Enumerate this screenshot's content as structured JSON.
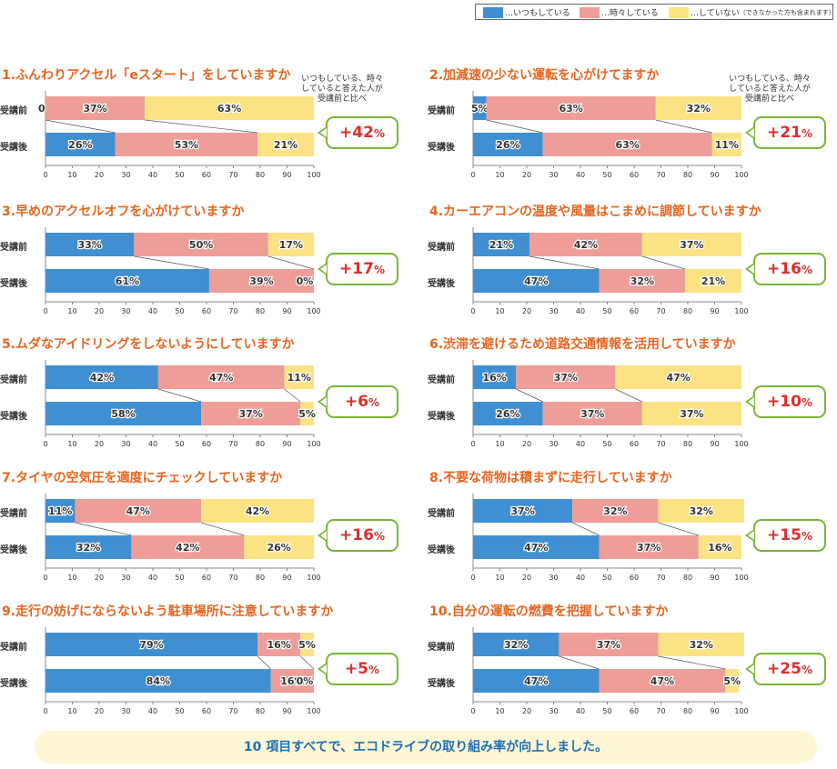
{
  "legend": {
    "always": "…いつもしている",
    "sometimes": "…時々している",
    "never": "…していない",
    "never_note": "（できなかった方も含まれます）"
  },
  "colors": {
    "always": "#3f8fd2",
    "sometimes": "#ef9d98",
    "never": "#fbe383",
    "accent": "#e8651e",
    "badge_border": "#7ab536",
    "badge_text": "#e02d2d",
    "summary_text": "#1f70b5"
  },
  "row_labels": {
    "before": "受講前",
    "after": "受講後"
  },
  "note_text": "いつもしている、時々していると答えた人が受講前と比べ",
  "summary": "10 項目すべてで、エコドライブの取り組み率が向上しました。",
  "chart_data": [
    {
      "type": "bar",
      "title": "1.ふんわりアクセル「eスタート」をしていますか",
      "series": [
        "always",
        "sometimes",
        "never"
      ],
      "before": [
        0,
        37,
        63
      ],
      "after": [
        26,
        53,
        21
      ],
      "improvement": "+42",
      "xlim": [
        0,
        100
      ],
      "ticks": [
        "0",
        "10",
        "20",
        "30",
        "40",
        "50",
        "60",
        "70",
        "80",
        "90",
        "100"
      ]
    },
    {
      "type": "bar",
      "title": "2.加減速の少ない運転を心がけてますか",
      "series": [
        "always",
        "sometimes",
        "never"
      ],
      "before": [
        5,
        63,
        32
      ],
      "after": [
        26,
        63,
        11
      ],
      "improvement": "+21",
      "xlim": [
        0,
        100
      ],
      "ticks": [
        "0",
        "10",
        "20",
        "30",
        "40",
        "50",
        "60",
        "70",
        "80",
        "90",
        "100"
      ]
    },
    {
      "type": "bar",
      "title": "3.早めのアクセルオフを心がけていますか",
      "series": [
        "always",
        "sometimes",
        "never"
      ],
      "before": [
        33,
        50,
        17
      ],
      "after": [
        61,
        39,
        0
      ],
      "improvement": "+17",
      "xlim": [
        0,
        100
      ],
      "ticks": [
        "0",
        "10",
        "20",
        "30",
        "40",
        "50",
        "60",
        "70",
        "80",
        "90",
        "100"
      ]
    },
    {
      "type": "bar",
      "title": "4.カーエアコンの温度や風量はこまめに調節していますか",
      "series": [
        "always",
        "sometimes",
        "never"
      ],
      "before": [
        21,
        42,
        37
      ],
      "after": [
        47,
        32,
        21
      ],
      "improvement": "+16",
      "xlim": [
        0,
        100
      ],
      "ticks": [
        "0",
        "10",
        "20",
        "30",
        "40",
        "50",
        "60",
        "70",
        "80",
        "90",
        "100"
      ]
    },
    {
      "type": "bar",
      "title": "5.ムダなアイドリングをしないようにしていますか",
      "series": [
        "always",
        "sometimes",
        "never"
      ],
      "before": [
        42,
        47,
        11
      ],
      "after": [
        58,
        37,
        5
      ],
      "improvement": "+6",
      "xlim": [
        0,
        100
      ],
      "ticks": [
        "0",
        "10",
        "20",
        "30",
        "40",
        "50",
        "60",
        "70",
        "80",
        "90",
        "100"
      ]
    },
    {
      "type": "bar",
      "title": "6.渋滞を避けるため道路交通情報を活用していますか",
      "series": [
        "always",
        "sometimes",
        "never"
      ],
      "before": [
        16,
        37,
        47
      ],
      "after": [
        26,
        37,
        37
      ],
      "improvement": "+10",
      "xlim": [
        0,
        100
      ],
      "ticks": [
        "0",
        "10",
        "20",
        "30",
        "40",
        "50",
        "60",
        "70",
        "80",
        "90",
        "100"
      ]
    },
    {
      "type": "bar",
      "title": "7.タイヤの空気圧を適度にチェックしていますか",
      "series": [
        "always",
        "sometimes",
        "never"
      ],
      "before": [
        11,
        47,
        42
      ],
      "after": [
        32,
        42,
        26
      ],
      "improvement": "+16",
      "xlim": [
        0,
        100
      ],
      "ticks": [
        "0",
        "10",
        "20",
        "30",
        "40",
        "50",
        "60",
        "70",
        "80",
        "90",
        "100"
      ]
    },
    {
      "type": "bar",
      "title": "8.不要な荷物は積まずに走行していますか",
      "series": [
        "always",
        "sometimes",
        "never"
      ],
      "before": [
        37,
        32,
        32
      ],
      "after": [
        47,
        37,
        16
      ],
      "improvement": "+15",
      "xlim": [
        0,
        100
      ],
      "ticks": [
        "0",
        "10",
        "20",
        "30",
        "40",
        "50",
        "60",
        "70",
        "80",
        "90",
        "100"
      ]
    },
    {
      "type": "bar",
      "title": "9.走行の妨げにならないよう駐車場所に注意していますか",
      "series": [
        "always",
        "sometimes",
        "never"
      ],
      "before": [
        79,
        16,
        5
      ],
      "after": [
        84,
        16,
        0
      ],
      "improvement": "+5",
      "xlim": [
        0,
        100
      ],
      "ticks": [
        "0",
        "10",
        "20",
        "30",
        "40",
        "50",
        "60",
        "70",
        "80",
        "90",
        "100"
      ]
    },
    {
      "type": "bar",
      "title": "10.自分の運転の燃費を把握していますか",
      "series": [
        "always",
        "sometimes",
        "never"
      ],
      "before": [
        32,
        37,
        32
      ],
      "after": [
        47,
        47,
        5
      ],
      "improvement": "+25",
      "xlim": [
        0,
        100
      ],
      "ticks": [
        "0",
        "10",
        "20",
        "30",
        "40",
        "50",
        "60",
        "70",
        "80",
        "90",
        "100"
      ]
    }
  ]
}
